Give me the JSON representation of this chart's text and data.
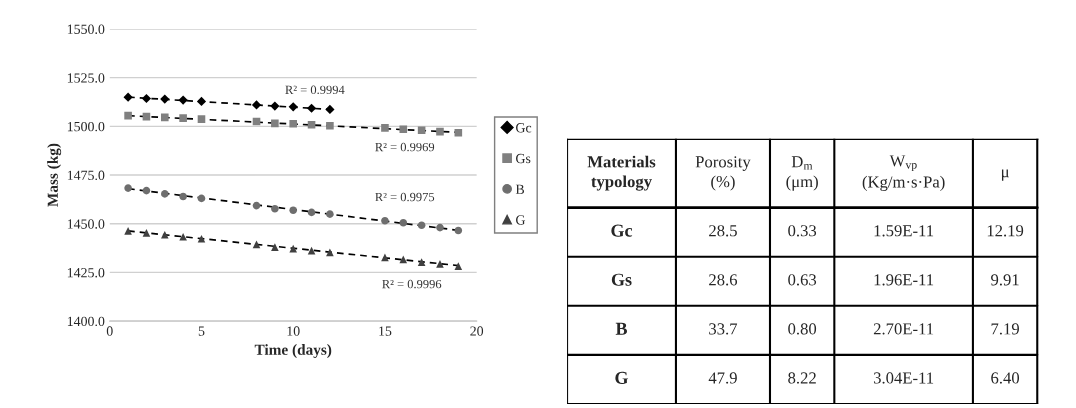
{
  "chart_data": [
    {
      "type": "scatter",
      "xlabel": "Time (days)",
      "ylabel": "Mass (kg)",
      "xlim": [
        0,
        20
      ],
      "xticks": [
        0,
        5,
        10,
        15,
        20
      ],
      "ylim": [
        1400,
        1550
      ],
      "yticks": [
        {
          "value": 1400,
          "label": "1400.0"
        },
        {
          "value": 1425,
          "label": "1425.0"
        },
        {
          "value": 1450,
          "label": "1450.0"
        },
        {
          "value": 1475,
          "label": "1475.0"
        },
        {
          "value": 1500,
          "label": "1500.0"
        },
        {
          "value": 1525,
          "label": "1525.0"
        },
        {
          "value": 1550,
          "label": "1550.0"
        }
      ],
      "grid": "y",
      "legend": "right",
      "series": [
        {
          "name": "Gc",
          "color": "#000000",
          "marker": "diamond",
          "x": [
            1,
            2,
            3,
            4,
            5,
            8,
            9,
            10,
            11,
            12
          ],
          "values": [
            1515.0,
            1514.3,
            1514.0,
            1513.5,
            1512.8,
            1511.0,
            1510.4,
            1510.0,
            1509.3,
            1508.7
          ]
        },
        {
          "name": "Gs",
          "color": "#808080",
          "marker": "square",
          "x": [
            1,
            2,
            3,
            4,
            5,
            8,
            9,
            10,
            11,
            12,
            15,
            16,
            17,
            18,
            19
          ],
          "values": [
            1505.5,
            1505.0,
            1504.6,
            1504.2,
            1503.7,
            1502.5,
            1501.5,
            1501.3,
            1500.8,
            1500.3,
            1499.2,
            1498.5,
            1498.0,
            1497.3,
            1496.7
          ]
        },
        {
          "name": "B",
          "color": "#6e6e6e",
          "marker": "circle",
          "x": [
            1,
            2,
            3,
            4,
            5,
            8,
            9,
            10,
            11,
            12,
            15,
            16,
            17,
            18,
            19
          ],
          "values": [
            1468.3,
            1467.0,
            1465.3,
            1464.0,
            1463.0,
            1459.3,
            1457.7,
            1456.9,
            1455.8,
            1454.9,
            1451.5,
            1450.5,
            1449.2,
            1448.0,
            1446.5
          ]
        },
        {
          "name": "G",
          "color": "#404040",
          "marker": "triangle",
          "x": [
            1,
            2,
            3,
            4,
            5,
            8,
            9,
            10,
            11,
            12,
            15,
            16,
            17,
            18,
            19
          ],
          "values": [
            1446.3,
            1445.3,
            1444.3,
            1443.3,
            1442.3,
            1439.4,
            1438.0,
            1437.2,
            1436.2,
            1435.3,
            1432.7,
            1431.7,
            1430.3,
            1429.4,
            1428.2
          ]
        },
        {
          "type": "line",
          "color": "#000000",
          "marker": "none",
          "line_style": "dashed",
          "x": [
            1,
            12
          ],
          "values": [
            1515.0,
            1508.7
          ]
        },
        {
          "type": "line",
          "color": "#000000",
          "marker": "none",
          "line_style": "dashed",
          "x": [
            1,
            19
          ],
          "values": [
            1505.5,
            1496.9
          ]
        },
        {
          "type": "line",
          "color": "#000000",
          "marker": "none",
          "line_style": "dashed",
          "x": [
            1,
            19
          ],
          "values": [
            1468.0,
            1446.6
          ]
        },
        {
          "type": "line",
          "color": "#000000",
          "marker": "none",
          "line_style": "dashed",
          "x": [
            1,
            19
          ],
          "values": [
            1446.3,
            1428.5
          ]
        }
      ],
      "annotations": [
        "R² = 0.9994",
        "R² = 0.9969",
        "R² = 0.9975",
        "R² = 0.9996"
      ]
    },
    {
      "type": "other",
      "categories": [
        "Materials typology",
        "Porosity (%)",
        "D$_{m}$ (μm)",
        "W$_{vp}$ (Kg/m·s·Pa)",
        "μ"
      ],
      "y_categories": [
        "Gc",
        "Gs",
        "B",
        "G"
      ],
      "cell_labels": [
        [
          "28.5",
          "0.33",
          "1.59E-11",
          "12.19"
        ],
        [
          "28.6",
          "0.63",
          "1.96E-11",
          "9.91"
        ],
        [
          "33.7",
          "0.80",
          "2.70E-11",
          "7.19"
        ],
        [
          "47.9",
          "8.22",
          "3.04E-11",
          "6.40"
        ]
      ]
    }
  ]
}
